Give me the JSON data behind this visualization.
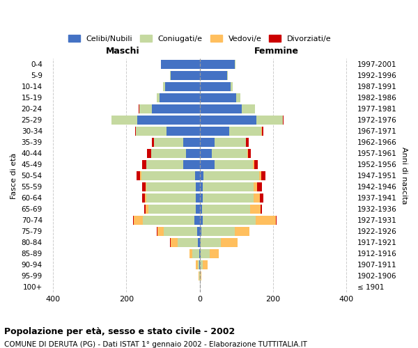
{
  "age_groups": [
    "100+",
    "95-99",
    "90-94",
    "85-89",
    "80-84",
    "75-79",
    "70-74",
    "65-69",
    "60-64",
    "55-59",
    "50-54",
    "45-49",
    "40-44",
    "35-39",
    "30-34",
    "25-29",
    "20-24",
    "15-19",
    "10-14",
    "5-9",
    "0-4"
  ],
  "birth_years": [
    "≤ 1901",
    "1902-1906",
    "1907-1911",
    "1912-1916",
    "1917-1921",
    "1922-1926",
    "1927-1931",
    "1932-1936",
    "1937-1941",
    "1942-1946",
    "1947-1951",
    "1952-1956",
    "1957-1961",
    "1962-1966",
    "1967-1971",
    "1972-1976",
    "1977-1981",
    "1982-1986",
    "1987-1991",
    "1992-1996",
    "1997-2001"
  ],
  "male_celibi": [
    0,
    0,
    1,
    2,
    5,
    8,
    15,
    10,
    10,
    10,
    12,
    45,
    38,
    45,
    90,
    170,
    130,
    110,
    95,
    80,
    105
  ],
  "male_coniugati": [
    0,
    2,
    5,
    18,
    55,
    90,
    140,
    130,
    135,
    135,
    148,
    100,
    95,
    80,
    85,
    70,
    35,
    8,
    5,
    2,
    1
  ],
  "male_vedovi": [
    0,
    1,
    4,
    8,
    20,
    18,
    25,
    8,
    5,
    2,
    2,
    0,
    0,
    0,
    0,
    0,
    0,
    0,
    0,
    0,
    0
  ],
  "male_divorziati": [
    0,
    0,
    0,
    0,
    1,
    1,
    2,
    3,
    8,
    10,
    10,
    12,
    10,
    5,
    2,
    1,
    1,
    0,
    0,
    0,
    0
  ],
  "female_celibi": [
    0,
    0,
    1,
    2,
    3,
    5,
    8,
    7,
    8,
    9,
    10,
    40,
    32,
    40,
    80,
    155,
    115,
    100,
    85,
    75,
    95
  ],
  "female_coniugati": [
    0,
    2,
    8,
    25,
    55,
    90,
    145,
    130,
    138,
    138,
    152,
    105,
    98,
    85,
    88,
    72,
    35,
    10,
    5,
    2,
    2
  ],
  "female_vedovi": [
    1,
    3,
    12,
    25,
    45,
    40,
    55,
    28,
    18,
    10,
    5,
    3,
    2,
    1,
    1,
    0,
    0,
    0,
    0,
    0,
    0
  ],
  "female_divorziati": [
    0,
    0,
    0,
    0,
    1,
    1,
    2,
    5,
    10,
    12,
    12,
    10,
    8,
    8,
    5,
    2,
    1,
    0,
    0,
    0,
    0
  ],
  "colors": {
    "celibi": "#4472C4",
    "coniugati": "#C5D9A0",
    "vedovi": "#FFBF5E",
    "divorziati": "#CC0000"
  },
  "title": "Popolazione per età, sesso e stato civile - 2002",
  "subtitle": "COMUNE DI DERUTA (PG) - Dati ISTAT 1° gennaio 2002 - Elaborazione TUTTITALIA.IT",
  "xlabel_left": "Maschi",
  "xlabel_right": "Femmine",
  "ylabel_left": "Fasce di età",
  "ylabel_right": "Anni di nascita",
  "xlim": 420,
  "bg_color": "#FFFFFF",
  "grid_color": "#CCCCCC",
  "bar_height": 0.8
}
